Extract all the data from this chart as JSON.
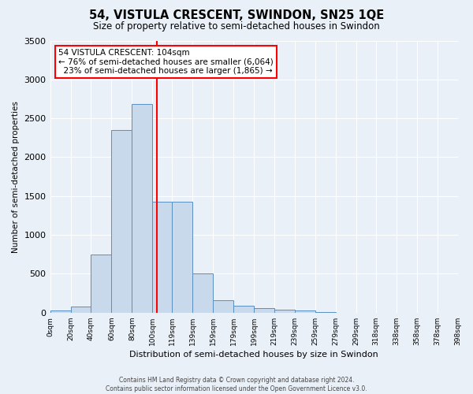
{
  "title": "54, VISTULA CRESCENT, SWINDON, SN25 1QE",
  "subtitle": "Size of property relative to semi-detached houses in Swindon",
  "xlabel": "Distribution of semi-detached houses by size in Swindon",
  "ylabel": "Number of semi-detached properties",
  "property_size": 104,
  "property_label": "54 VISTULA CRESCENT: 104sqm",
  "pct_smaller": 76,
  "count_smaller": 6064,
  "pct_larger": 23,
  "count_larger": 1865,
  "bin_labels": [
    "0sqm",
    "20sqm",
    "40sqm",
    "60sqm",
    "80sqm",
    "100sqm",
    "119sqm",
    "139sqm",
    "159sqm",
    "179sqm",
    "199sqm",
    "219sqm",
    "239sqm",
    "259sqm",
    "279sqm",
    "299sqm",
    "318sqm",
    "338sqm",
    "358sqm",
    "378sqm",
    "398sqm"
  ],
  "bin_left": [
    0,
    20,
    40,
    60,
    80,
    100,
    119,
    139,
    159,
    179,
    199,
    219,
    239,
    259,
    279,
    299,
    318,
    338,
    358,
    378
  ],
  "bin_widths": [
    20,
    20,
    20,
    20,
    20,
    19,
    20,
    20,
    20,
    20,
    20,
    20,
    20,
    20,
    20,
    19,
    20,
    20,
    20,
    20
  ],
  "counts": [
    25,
    75,
    750,
    2350,
    2680,
    1430,
    1430,
    500,
    160,
    90,
    60,
    40,
    25,
    5,
    3,
    2,
    1,
    0,
    0,
    0
  ],
  "bar_color": "#c8d9ec",
  "bar_edge_color": "#5a8fc2",
  "red_bar_index": 4,
  "red_bar_color": "#c8d9ec",
  "red_line_x": 104,
  "vline_color": "red",
  "ylim_max": 3500,
  "yticks": [
    0,
    500,
    1000,
    1500,
    2000,
    2500,
    3000,
    3500
  ],
  "bg_color": "#eaf0f8",
  "grid_color": "white",
  "footer_line1": "Contains HM Land Registry data © Crown copyright and database right 2024.",
  "footer_line2": "Contains public sector information licensed under the Open Government Licence v3.0."
}
